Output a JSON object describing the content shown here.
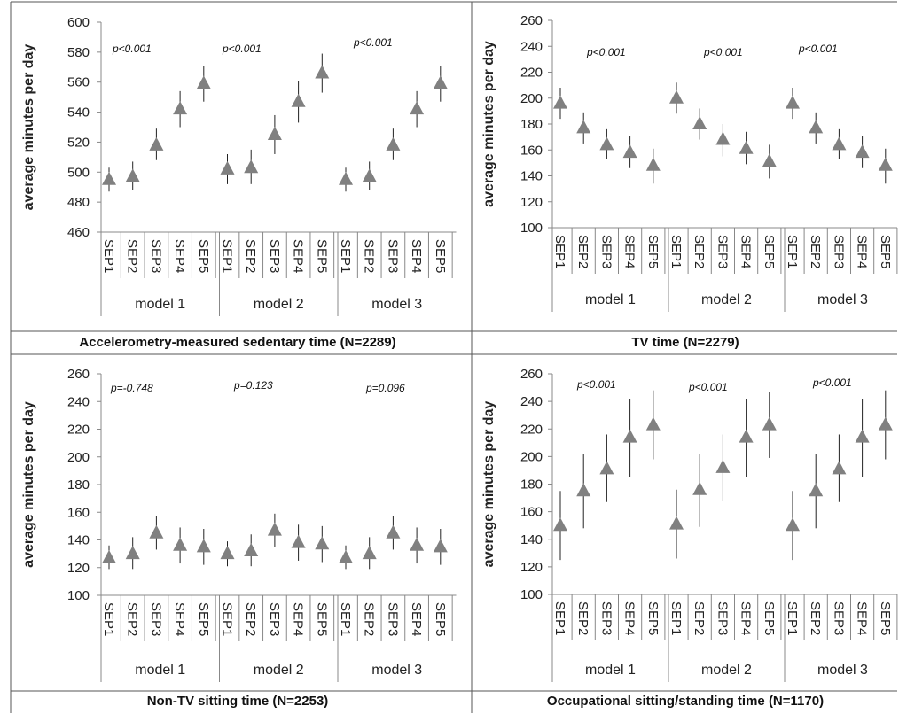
{
  "chart_data": [
    {
      "type": "scatter",
      "title": "Accelerometry-measured sedentary time (N=2289)",
      "ylabel": "average minutes per day",
      "ylim": [
        460,
        600
      ],
      "yticks": [
        460,
        480,
        500,
        520,
        540,
        560,
        580,
        600
      ],
      "groups": [
        {
          "label": "model 1",
          "annotation": "p<0.001",
          "categories": [
            "SEP1",
            "SEP2",
            "SEP3",
            "SEP4",
            "SEP5"
          ],
          "values": [
            495,
            497,
            518,
            542,
            559
          ],
          "lower": [
            487,
            488,
            508,
            530,
            547
          ],
          "upper": [
            503,
            507,
            529,
            554,
            571
          ]
        },
        {
          "label": "model 2",
          "annotation": "p<0.001",
          "categories": [
            "SEP1",
            "SEP2",
            "SEP3",
            "SEP4",
            "SEP5"
          ],
          "values": [
            502,
            503,
            525,
            547,
            566
          ],
          "lower": [
            492,
            492,
            512,
            533,
            553
          ],
          "upper": [
            512,
            515,
            538,
            561,
            579
          ]
        },
        {
          "label": "model 3",
          "annotation": "p<0.001",
          "categories": [
            "SEP1",
            "SEP2",
            "SEP3",
            "SEP4",
            "SEP5"
          ],
          "values": [
            495,
            497,
            518,
            542,
            559
          ],
          "lower": [
            487,
            488,
            508,
            530,
            547
          ],
          "upper": [
            503,
            507,
            529,
            554,
            571
          ]
        }
      ]
    },
    {
      "type": "scatter",
      "title": "TV time (N=2279)",
      "ylabel": "average minutes per day",
      "ylim": [
        100,
        260
      ],
      "yticks": [
        100,
        120,
        140,
        160,
        180,
        200,
        220,
        240,
        260
      ],
      "groups": [
        {
          "label": "model 1",
          "annotation": "p<0.001",
          "categories": [
            "SEP1",
            "SEP2",
            "SEP3",
            "SEP4",
            "SEP5"
          ],
          "values": [
            196,
            177,
            164,
            158,
            148
          ],
          "lower": [
            184,
            165,
            153,
            146,
            134
          ],
          "upper": [
            208,
            189,
            176,
            171,
            161
          ]
        },
        {
          "label": "model 2",
          "annotation": "p<0.001",
          "categories": [
            "SEP1",
            "SEP2",
            "SEP3",
            "SEP4",
            "SEP5"
          ],
          "values": [
            200,
            180,
            168,
            161,
            151
          ],
          "lower": [
            188,
            168,
            155,
            149,
            138
          ],
          "upper": [
            212,
            192,
            180,
            174,
            164
          ]
        },
        {
          "label": "model 3",
          "annotation": "p<0.001",
          "categories": [
            "SEP1",
            "SEP2",
            "SEP3",
            "SEP4",
            "SEP5"
          ],
          "values": [
            196,
            177,
            164,
            158,
            148
          ],
          "lower": [
            184,
            165,
            153,
            146,
            134
          ],
          "upper": [
            208,
            189,
            176,
            171,
            161
          ]
        }
      ]
    },
    {
      "type": "scatter",
      "title": "Non-TV sitting time (N=2253)",
      "ylabel": "average minutes per day",
      "ylim": [
        100,
        260
      ],
      "yticks": [
        100,
        120,
        140,
        160,
        180,
        200,
        220,
        240,
        260
      ],
      "groups": [
        {
          "label": "model 1",
          "annotation": "p=-0.748",
          "categories": [
            "SEP1",
            "SEP2",
            "SEP3",
            "SEP4",
            "SEP5"
          ],
          "values": [
            127,
            130,
            145,
            136,
            135
          ],
          "lower": [
            119,
            119,
            133,
            123,
            122
          ],
          "upper": [
            136,
            142,
            157,
            149,
            148
          ]
        },
        {
          "label": "model 2",
          "annotation": "p=0.123",
          "categories": [
            "SEP1",
            "SEP2",
            "SEP3",
            "SEP4",
            "SEP5"
          ],
          "values": [
            130,
            132,
            147,
            138,
            137
          ],
          "lower": [
            121,
            121,
            135,
            125,
            124
          ],
          "upper": [
            139,
            144,
            159,
            151,
            150
          ]
        },
        {
          "label": "model 3",
          "annotation": "p=0.096",
          "categories": [
            "SEP1",
            "SEP2",
            "SEP3",
            "SEP4",
            "SEP5"
          ],
          "values": [
            127,
            130,
            145,
            136,
            135
          ],
          "lower": [
            119,
            119,
            133,
            123,
            122
          ],
          "upper": [
            136,
            142,
            157,
            149,
            148
          ]
        }
      ]
    },
    {
      "type": "scatter",
      "title": "Occupational sitting/standing time (N=1170)",
      "ylabel": "average minutes per day",
      "ylim": [
        100,
        260
      ],
      "yticks": [
        100,
        120,
        140,
        160,
        180,
        200,
        220,
        240,
        260
      ],
      "groups": [
        {
          "label": "model 1",
          "annotation": "p<0.001",
          "categories": [
            "SEP1",
            "SEP2",
            "SEP3",
            "SEP4",
            "SEP5"
          ],
          "values": [
            150,
            175,
            191,
            214,
            223
          ],
          "lower": [
            125,
            148,
            167,
            185,
            198
          ],
          "upper": [
            175,
            202,
            216,
            242,
            248
          ]
        },
        {
          "label": "model 2",
          "annotation": "p<0.001",
          "categories": [
            "SEP1",
            "SEP2",
            "SEP3",
            "SEP4",
            "SEP5"
          ],
          "values": [
            151,
            176,
            192,
            214,
            223
          ],
          "lower": [
            126,
            149,
            168,
            185,
            199
          ],
          "upper": [
            176,
            202,
            216,
            242,
            247
          ]
        },
        {
          "label": "model 3",
          "annotation": "p<0.001",
          "categories": [
            "SEP1",
            "SEP2",
            "SEP3",
            "SEP4",
            "SEP5"
          ],
          "values": [
            150,
            175,
            191,
            214,
            223
          ],
          "lower": [
            125,
            148,
            167,
            185,
            198
          ],
          "upper": [
            175,
            202,
            216,
            242,
            248
          ]
        }
      ]
    }
  ]
}
